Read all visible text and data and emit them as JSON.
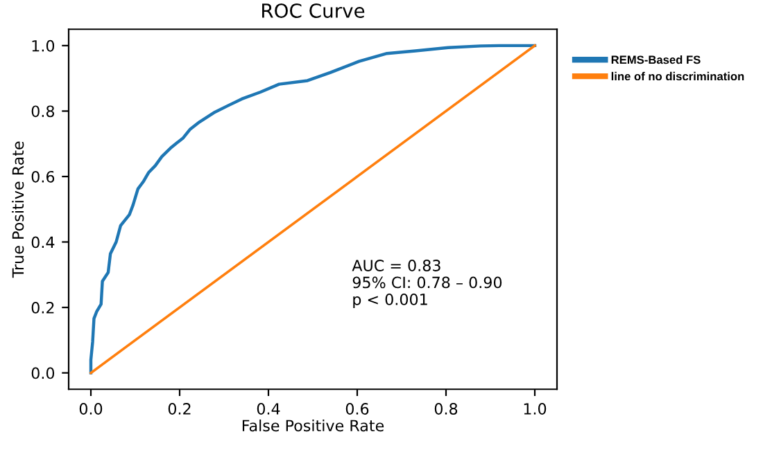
{
  "chart_data": {
    "type": "line",
    "title": "ROC Curve",
    "xlabel": "False Positive Rate",
    "ylabel": "True Positive Rate",
    "xlim": [
      -0.05,
      1.05
    ],
    "ylim": [
      -0.05,
      1.05
    ],
    "xticks": [
      {
        "value": 0,
        "label": "0.0"
      },
      0.2,
      0.4,
      0.6,
      0.8,
      {
        "value": 1,
        "label": "1.0"
      }
    ],
    "yticks": [
      {
        "value": 0,
        "label": "0.0"
      },
      0.2,
      0.4,
      0.6,
      0.8,
      {
        "value": 1,
        "label": "1.0"
      }
    ],
    "grid": false,
    "legend": "right",
    "marker": "none",
    "line_style": "solid",
    "series": [
      {
        "name": "REMS-Based FS",
        "color": "#1f77b4",
        "x": [
          0,
          0,
          0.004,
          0.007,
          0.013,
          0.023,
          0.026,
          0.039,
          0.044,
          0.057,
          0.067,
          0.087,
          0.095,
          0.106,
          0.118,
          0.13,
          0.145,
          0.16,
          0.182,
          0.208,
          0.224,
          0.245,
          0.277,
          0.308,
          0.34,
          0.382,
          0.424,
          0.488,
          0.54,
          0.604,
          0.667,
          0.731,
          0.805,
          0.878,
          0.92,
          1
        ],
        "values": [
          0,
          0.04,
          0.095,
          0.166,
          0.187,
          0.21,
          0.28,
          0.307,
          0.364,
          0.4,
          0.45,
          0.484,
          0.513,
          0.562,
          0.584,
          0.612,
          0.633,
          0.661,
          0.69,
          0.718,
          0.745,
          0.767,
          0.795,
          0.816,
          0.837,
          0.858,
          0.882,
          0.893,
          0.918,
          0.952,
          0.976,
          0.984,
          0.994,
          0.999,
          1,
          1
        ]
      },
      {
        "name": "line of no discrimination",
        "color": "#ff7f0e",
        "x": [
          0,
          1
        ],
        "values": [
          0,
          1
        ]
      }
    ],
    "annotations": [
      "AUC = 0.83",
      "95% CI: 0.78 – 0.90",
      "p < 0.001"
    ]
  }
}
